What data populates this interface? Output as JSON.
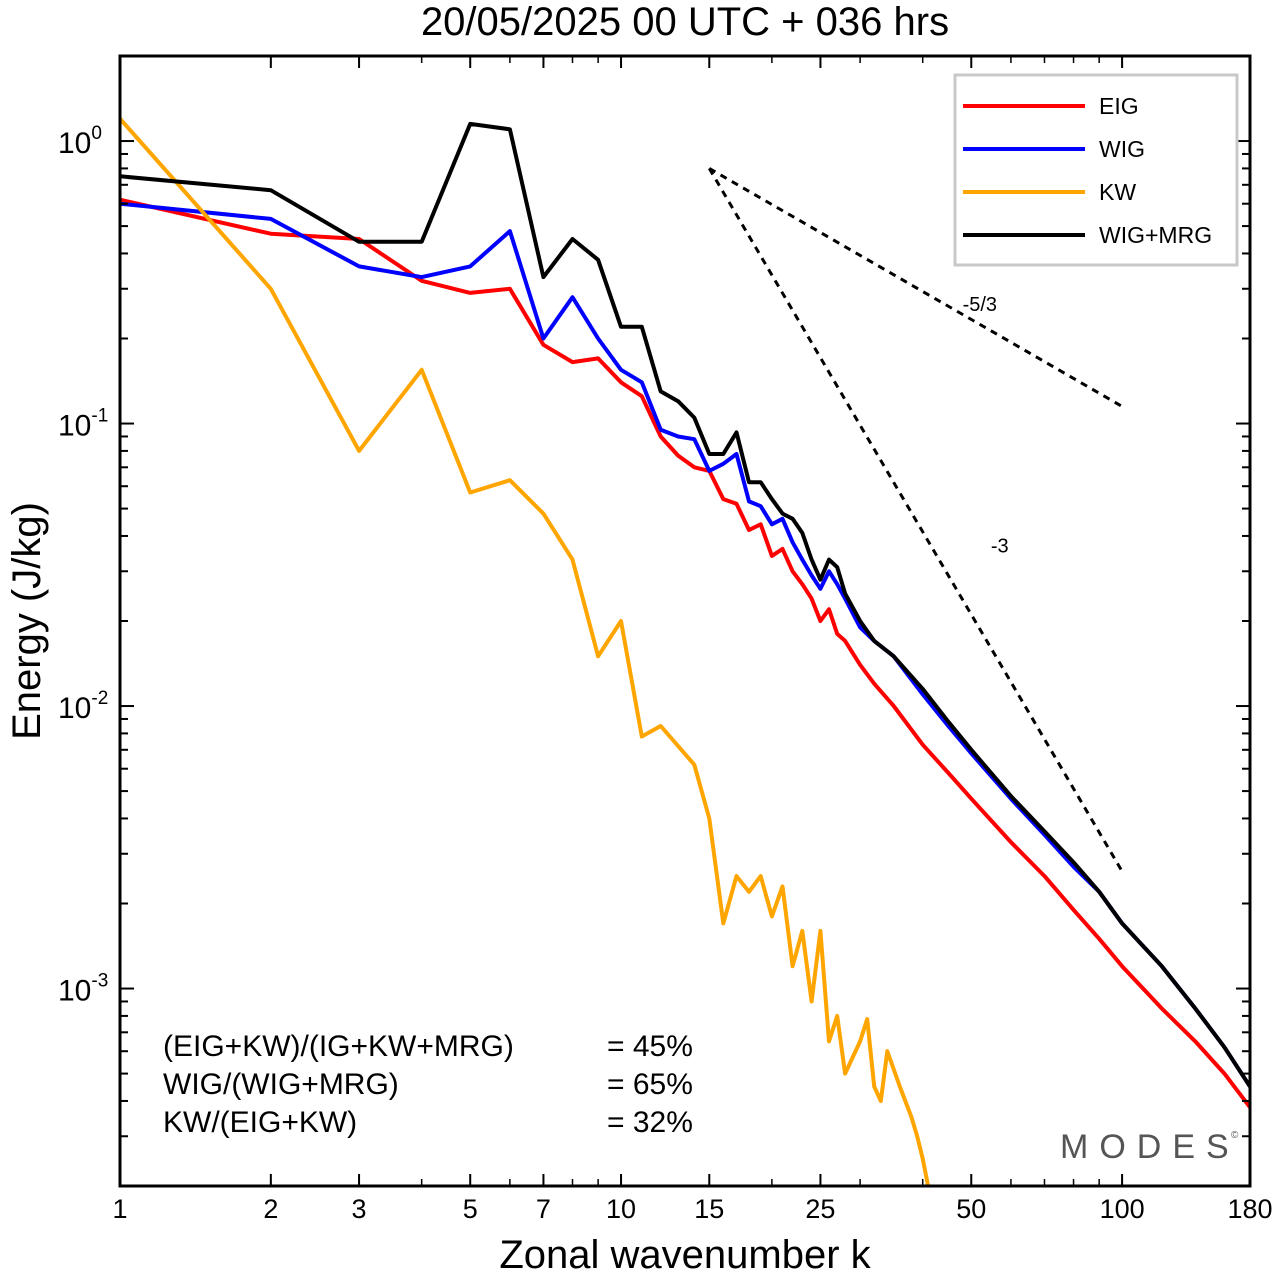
{
  "chart_data": {
    "type": "line",
    "title": "20/05/2025  00 UTC  + 036 hrs",
    "xlabel": "Zonal wavenumber k",
    "ylabel": "Energy (J/kg)",
    "xscale": "log",
    "yscale": "log",
    "xlim": [
      1,
      180
    ],
    "ylim": [
      0.0002,
      2.0
    ],
    "xticks": [
      1,
      2,
      3,
      5,
      7,
      10,
      15,
      25,
      50,
      100,
      180
    ],
    "xtick_labels": [
      "1",
      "2",
      "3",
      "5",
      "7",
      "10",
      "15",
      "25",
      "50",
      "100",
      "180"
    ],
    "yticks": [
      {
        "value": 1.0,
        "base": "10",
        "exp": "0"
      },
      {
        "value": 0.1,
        "base": "10",
        "exp": "-1"
      },
      {
        "value": 0.01,
        "base": "10",
        "exp": "-2"
      },
      {
        "value": 0.001,
        "base": "10",
        "exp": "-3"
      }
    ],
    "grid": false,
    "legend": "top-right",
    "series": [
      {
        "name": "EIG",
        "color": "#ff0000",
        "points": [
          [
            1,
            0.62
          ],
          [
            2,
            0.47
          ],
          [
            3,
            0.45
          ],
          [
            4,
            0.32
          ],
          [
            5,
            0.29
          ],
          [
            6,
            0.3
          ],
          [
            7,
            0.19
          ],
          [
            8,
            0.165
          ],
          [
            9,
            0.17
          ],
          [
            10,
            0.14
          ],
          [
            11,
            0.125
          ],
          [
            12,
            0.09
          ],
          [
            13,
            0.077
          ],
          [
            14,
            0.07
          ],
          [
            15,
            0.068
          ],
          [
            16,
            0.054
          ],
          [
            17,
            0.052
          ],
          [
            18,
            0.042
          ],
          [
            19,
            0.044
          ],
          [
            20,
            0.034
          ],
          [
            21,
            0.036
          ],
          [
            22,
            0.03
          ],
          [
            23,
            0.027
          ],
          [
            24,
            0.024
          ],
          [
            25,
            0.02
          ],
          [
            26,
            0.022
          ],
          [
            27,
            0.018
          ],
          [
            28,
            0.017
          ],
          [
            30,
            0.014
          ],
          [
            32,
            0.012
          ],
          [
            35,
            0.01
          ],
          [
            40,
            0.0073
          ],
          [
            45,
            0.0058
          ],
          [
            50,
            0.0047
          ],
          [
            60,
            0.0033
          ],
          [
            70,
            0.0025
          ],
          [
            80,
            0.0019
          ],
          [
            90,
            0.0015
          ],
          [
            100,
            0.0012
          ],
          [
            120,
            0.00085
          ],
          [
            140,
            0.00065
          ],
          [
            160,
            0.0005
          ],
          [
            180,
            0.00038
          ]
        ]
      },
      {
        "name": "WIG",
        "color": "#0000ff",
        "points": [
          [
            1,
            0.6
          ],
          [
            2,
            0.53
          ],
          [
            3,
            0.36
          ],
          [
            4,
            0.33
          ],
          [
            5,
            0.36
          ],
          [
            6,
            0.48
          ],
          [
            7,
            0.2
          ],
          [
            8,
            0.28
          ],
          [
            9,
            0.2
          ],
          [
            10,
            0.155
          ],
          [
            11,
            0.14
          ],
          [
            12,
            0.095
          ],
          [
            13,
            0.09
          ],
          [
            14,
            0.088
          ],
          [
            15,
            0.068
          ],
          [
            16,
            0.072
          ],
          [
            17,
            0.078
          ],
          [
            18,
            0.053
          ],
          [
            19,
            0.051
          ],
          [
            20,
            0.044
          ],
          [
            21,
            0.046
          ],
          [
            22,
            0.038
          ],
          [
            23,
            0.033
          ],
          [
            24,
            0.029
          ],
          [
            25,
            0.026
          ],
          [
            26,
            0.03
          ],
          [
            27,
            0.027
          ],
          [
            28,
            0.024
          ],
          [
            30,
            0.019
          ],
          [
            32,
            0.017
          ],
          [
            35,
            0.015
          ],
          [
            40,
            0.011
          ],
          [
            45,
            0.0085
          ],
          [
            50,
            0.0068
          ],
          [
            60,
            0.0047
          ],
          [
            70,
            0.0035
          ],
          [
            80,
            0.0027
          ],
          [
            90,
            0.0022
          ],
          [
            100,
            0.0017
          ],
          [
            120,
            0.0012
          ],
          [
            140,
            0.00085
          ],
          [
            160,
            0.00062
          ],
          [
            180,
            0.00045
          ]
        ]
      },
      {
        "name": "KW",
        "color": "#ffa500",
        "points": [
          [
            1,
            1.2
          ],
          [
            2,
            0.3
          ],
          [
            3,
            0.08
          ],
          [
            4,
            0.155
          ],
          [
            5,
            0.057
          ],
          [
            6,
            0.063
          ],
          [
            7,
            0.048
          ],
          [
            8,
            0.033
          ],
          [
            9,
            0.015
          ],
          [
            10,
            0.02
          ],
          [
            11,
            0.0078
          ],
          [
            12,
            0.0085
          ],
          [
            14,
            0.0062
          ],
          [
            15,
            0.004
          ],
          [
            16,
            0.0017
          ],
          [
            17,
            0.0025
          ],
          [
            18,
            0.0022
          ],
          [
            19,
            0.0025
          ],
          [
            20,
            0.0018
          ],
          [
            21,
            0.0023
          ],
          [
            22,
            0.0012
          ],
          [
            23,
            0.0016
          ],
          [
            24,
            0.0009
          ],
          [
            25,
            0.0016
          ],
          [
            26,
            0.00065
          ],
          [
            27,
            0.0008
          ],
          [
            28,
            0.0005
          ],
          [
            30,
            0.00065
          ],
          [
            31,
            0.00078
          ],
          [
            32,
            0.00045
          ],
          [
            33,
            0.0004
          ],
          [
            34,
            0.0006
          ],
          [
            36,
            0.00045
          ],
          [
            38,
            0.00035
          ],
          [
            39,
            0.0003
          ],
          [
            40,
            0.00025
          ],
          [
            41,
            0.0002
          ]
        ]
      },
      {
        "name": "WIG+MRG",
        "color": "#000000",
        "points": [
          [
            1,
            0.75
          ],
          [
            2,
            0.67
          ],
          [
            3,
            0.44
          ],
          [
            4,
            0.44
          ],
          [
            5,
            1.15
          ],
          [
            6,
            1.1
          ],
          [
            7,
            0.33
          ],
          [
            8,
            0.45
          ],
          [
            9,
            0.38
          ],
          [
            10,
            0.22
          ],
          [
            11,
            0.22
          ],
          [
            12,
            0.13
          ],
          [
            13,
            0.12
          ],
          [
            14,
            0.105
          ],
          [
            15,
            0.078
          ],
          [
            16,
            0.078
          ],
          [
            17,
            0.093
          ],
          [
            18,
            0.062
          ],
          [
            19,
            0.062
          ],
          [
            20,
            0.054
          ],
          [
            21,
            0.048
          ],
          [
            22,
            0.046
          ],
          [
            23,
            0.041
          ],
          [
            24,
            0.033
          ],
          [
            25,
            0.028
          ],
          [
            26,
            0.033
          ],
          [
            27,
            0.031
          ],
          [
            28,
            0.025
          ],
          [
            30,
            0.02
          ],
          [
            32,
            0.017
          ],
          [
            35,
            0.015
          ],
          [
            40,
            0.0115
          ],
          [
            45,
            0.0088
          ],
          [
            50,
            0.007
          ],
          [
            60,
            0.0048
          ],
          [
            70,
            0.0036
          ],
          [
            80,
            0.0028
          ],
          [
            90,
            0.0022
          ],
          [
            100,
            0.0017
          ],
          [
            120,
            0.0012
          ],
          [
            140,
            0.00085
          ],
          [
            160,
            0.00062
          ],
          [
            180,
            0.00045
          ]
        ]
      }
    ],
    "slope_lines": [
      {
        "label": "-5/3",
        "start": [
          15,
          0.8
        ],
        "end": [
          100,
          0.115
        ],
        "label_at": [
          52,
          0.25
        ]
      },
      {
        "label": "-3",
        "start": [
          15,
          0.8
        ],
        "end": [
          100,
          0.0026
        ],
        "label_at": [
          57,
          0.035
        ]
      }
    ],
    "annotations": [
      {
        "label": "(EIG+KW)/(IG+KW+MRG)",
        "value": "= 45%"
      },
      {
        "label": "WIG/(WIG+MRG)",
        "value": "= 65%"
      },
      {
        "label": "KW/(EIG+KW)",
        "value": "= 32%"
      }
    ],
    "watermark": "MODES",
    "watermark_mark": "©"
  }
}
